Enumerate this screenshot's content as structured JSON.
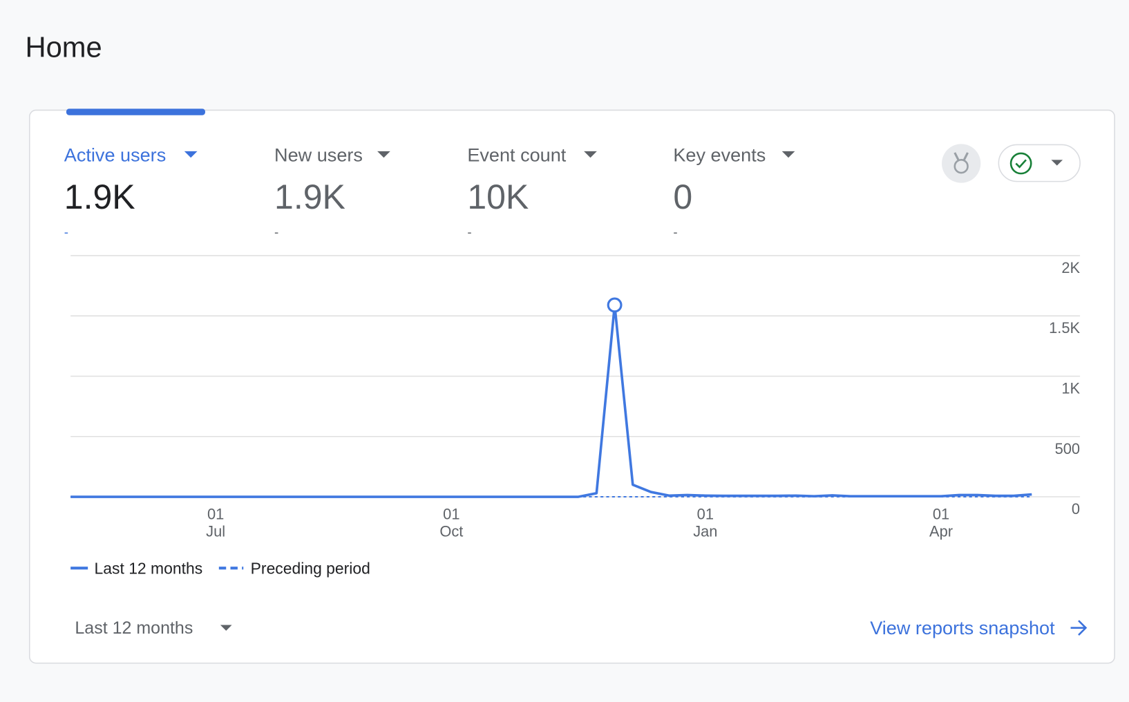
{
  "header": {
    "title": "Home"
  },
  "metrics": [
    {
      "label": "Active users",
      "value": "1.9K",
      "change": "-"
    },
    {
      "label": "New users",
      "value": "1.9K",
      "change": "-"
    },
    {
      "label": "Event count",
      "value": "10K",
      "change": "-"
    },
    {
      "label": "Key events",
      "value": "0",
      "change": "-"
    }
  ],
  "chart_data": {
    "type": "line",
    "categories": [
      null,
      null,
      null,
      null,
      null,
      null,
      null,
      null,
      [
        "01",
        "Jul"
      ],
      null,
      null,
      null,
      null,
      null,
      null,
      null,
      null,
      null,
      null,
      null,
      null,
      [
        "01",
        "Oct"
      ],
      null,
      null,
      null,
      null,
      null,
      null,
      null,
      null,
      null,
      null,
      null,
      null,
      null,
      [
        "01",
        "Jan"
      ],
      null,
      null,
      null,
      null,
      null,
      null,
      null,
      null,
      null,
      null,
      null,
      null,
      [
        "01",
        "Apr"
      ],
      null,
      null,
      null,
      null,
      null
    ],
    "series": [
      {
        "name": "Last 12 months",
        "color": "#4078e0",
        "style": "solid",
        "values": [
          0,
          0,
          0,
          0,
          0,
          0,
          0,
          0,
          0,
          0,
          0,
          0,
          0,
          0,
          0,
          0,
          0,
          0,
          0,
          0,
          0,
          0,
          0,
          0,
          0,
          0,
          0,
          0,
          0,
          30,
          1590,
          100,
          40,
          10,
          15,
          10,
          8,
          8,
          8,
          8,
          10,
          5,
          12,
          5,
          5,
          5,
          5,
          5,
          5,
          15,
          15,
          8,
          8,
          20
        ]
      },
      {
        "name": "Preceding period",
        "color": "#4078e0",
        "style": "dashed",
        "values": [
          0,
          0,
          0,
          0,
          0,
          0,
          0,
          0,
          0,
          0,
          0,
          0,
          0,
          0,
          0,
          0,
          0,
          0,
          0,
          0,
          0,
          0,
          0,
          0,
          0,
          0,
          0,
          0,
          0,
          0,
          0,
          0,
          0,
          0,
          0,
          0,
          0,
          0,
          0,
          0,
          0,
          0,
          0,
          0,
          0,
          0,
          0,
          0,
          0,
          0,
          0,
          0,
          0,
          0
        ]
      }
    ],
    "ylim": [
      0,
      2000
    ],
    "yticks": [
      0,
      500,
      {
        "value": 1000,
        "label": "1K"
      },
      {
        "value": 1500,
        "label": "1.5K"
      },
      {
        "value": 2000,
        "label": "2K"
      }
    ],
    "grid": true
  },
  "footer": {
    "range": "Last 12 months",
    "link": "View reports snapshot"
  }
}
